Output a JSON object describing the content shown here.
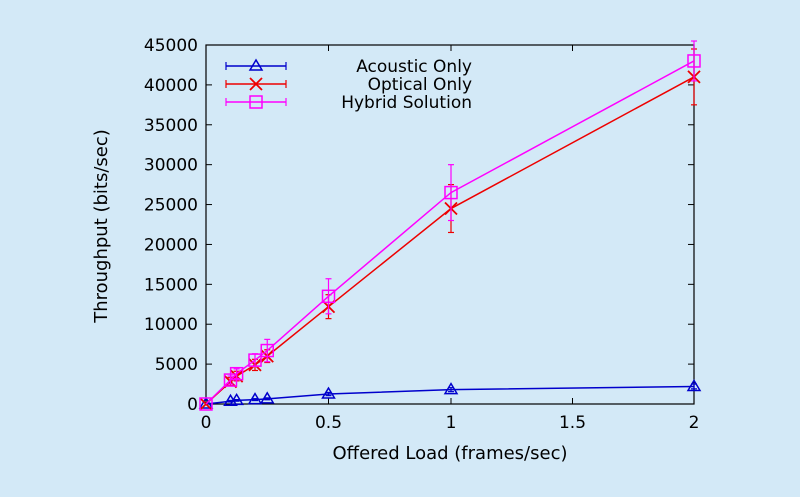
{
  "chart_data": {
    "type": "line",
    "title": "",
    "xlabel": "Offered Load (frames/sec)",
    "ylabel": "Throughput (bits/sec)",
    "x_tick_labels": [
      "0",
      "0.5",
      "1",
      "1.5",
      "2"
    ],
    "y_tick_labels": [
      "0",
      "5000",
      "10000",
      "15000",
      "20000",
      "25000",
      "30000",
      "35000",
      "40000",
      "45000"
    ],
    "ylim": [
      0,
      45000
    ],
    "x": [
      0,
      0.1,
      0.125,
      0.2,
      0.25,
      0.5,
      1,
      2
    ],
    "grid": false,
    "legend_position": "top-left",
    "series": [
      {
        "name": "Acoustic Only",
        "color": "#0000cc",
        "marker": "triangle",
        "values": [
          0,
          350,
          450,
          550,
          650,
          1250,
          1800,
          2200
        ],
        "errors": [
          0,
          100,
          100,
          120,
          120,
          200,
          250,
          300
        ]
      },
      {
        "name": "Optical Only",
        "color": "#ee0000",
        "marker": "cross",
        "values": [
          0,
          2800,
          3500,
          4900,
          6000,
          12200,
          24500,
          41000
        ],
        "errors": [
          0,
          500,
          600,
          700,
          800,
          1500,
          3000,
          3500
        ]
      },
      {
        "name": "Hybrid Solution",
        "color": "#ff00ff",
        "marker": "square",
        "values": [
          0,
          3000,
          3800,
          5500,
          6700,
          13500,
          26500,
          43000
        ],
        "errors": [
          0,
          500,
          600,
          800,
          1400,
          2200,
          3500,
          2500
        ]
      }
    ]
  }
}
